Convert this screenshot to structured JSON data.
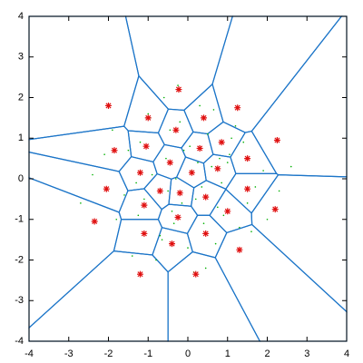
{
  "chart_data": {
    "type": "scatter",
    "xlim": [
      -4,
      4
    ],
    "ylim": [
      -4,
      4
    ],
    "xticks": [
      -4,
      -3,
      -2,
      -1,
      0,
      1,
      2,
      3,
      4
    ],
    "yticks": [
      -4,
      -3,
      -2,
      -1,
      0,
      1,
      2,
      3,
      4
    ],
    "voronoi": true,
    "voronoi_color": "#1c75c8",
    "series": [
      {
        "color": "#00b000",
        "marker": "dot",
        "x": [
          0.1,
          -0.5,
          0.8,
          -1.2,
          1.5,
          -0.2,
          0.4,
          -0.9,
          1.1,
          -1.6,
          0.0,
          0.6,
          -0.4,
          1.9,
          -2.1,
          0.3,
          -0.7,
          1.3,
          -1.3,
          0.9,
          -0.1,
          0.5,
          -1.0,
          1.7,
          -1.8,
          0.2,
          -0.3,
          0.7,
          -0.6,
          1.0,
          -2.4,
          2.3,
          -0.8,
          1.2,
          -1.4,
          0.05,
          -0.15,
          0.35,
          -0.45,
          0.65,
          2.6,
          -2.7,
          0.15,
          -1.1,
          1.4,
          -0.55,
          0.85,
          -1.9,
          1.6,
          -0.25,
          0.45,
          -0.65,
          1.05,
          -1.5,
          2.0,
          -0.35,
          0.25,
          -0.95,
          0.75,
          -1.25
        ],
        "y": [
          0.2,
          -0.3,
          0.5,
          0.9,
          -0.6,
          1.4,
          -1.1,
          0.1,
          1.0,
          -0.4,
          -1.7,
          0.3,
          -0.8,
          0.2,
          0.6,
          1.8,
          -1.4,
          -1.2,
          -0.1,
          -0.9,
          0.7,
          1.1,
          1.6,
          -0.2,
          -1.0,
          -0.5,
          0.0,
          -1.6,
          2.0,
          0.4,
          0.1,
          -0.3,
          -2.0,
          1.3,
          -1.9,
          0.8,
          -0.6,
          -0.2,
          1.2,
          1.7,
          0.3,
          -0.6,
          -2.3,
          -0.5,
          0.9,
          0.5,
          -0.1,
          1.2,
          -1.3,
          2.3,
          -2.2,
          -1.5,
          0.6,
          0.7,
          -1.0,
          -1.1,
          0.4,
          1.5,
          -0.7,
          -0.9
        ]
      },
      {
        "color": "#e01010",
        "marker": "star",
        "x": [
          -2.0,
          -0.23,
          -1.0,
          0.4,
          1.25,
          -0.3,
          0.85,
          2.25,
          -1.85,
          -1.05,
          0.3,
          -0.45,
          1.5,
          -1.2,
          0.1,
          0.75,
          -2.05,
          -0.7,
          -0.2,
          0.45,
          1.5,
          -1.1,
          1.0,
          2.2,
          -2.35,
          -0.25,
          -1.1,
          0.45,
          -0.4,
          1.3,
          -1.2,
          0.2
        ],
        "y": [
          1.8,
          2.2,
          1.5,
          1.5,
          1.75,
          1.2,
          0.9,
          0.95,
          0.7,
          0.8,
          0.75,
          0.4,
          0.5,
          0.15,
          0.15,
          0.25,
          -0.25,
          -0.3,
          -0.35,
          -0.45,
          -0.25,
          -0.65,
          -0.8,
          -0.75,
          -1.05,
          -0.95,
          -1.35,
          -1.35,
          -1.6,
          -1.75,
          -2.35,
          -2.35
        ]
      }
    ]
  }
}
